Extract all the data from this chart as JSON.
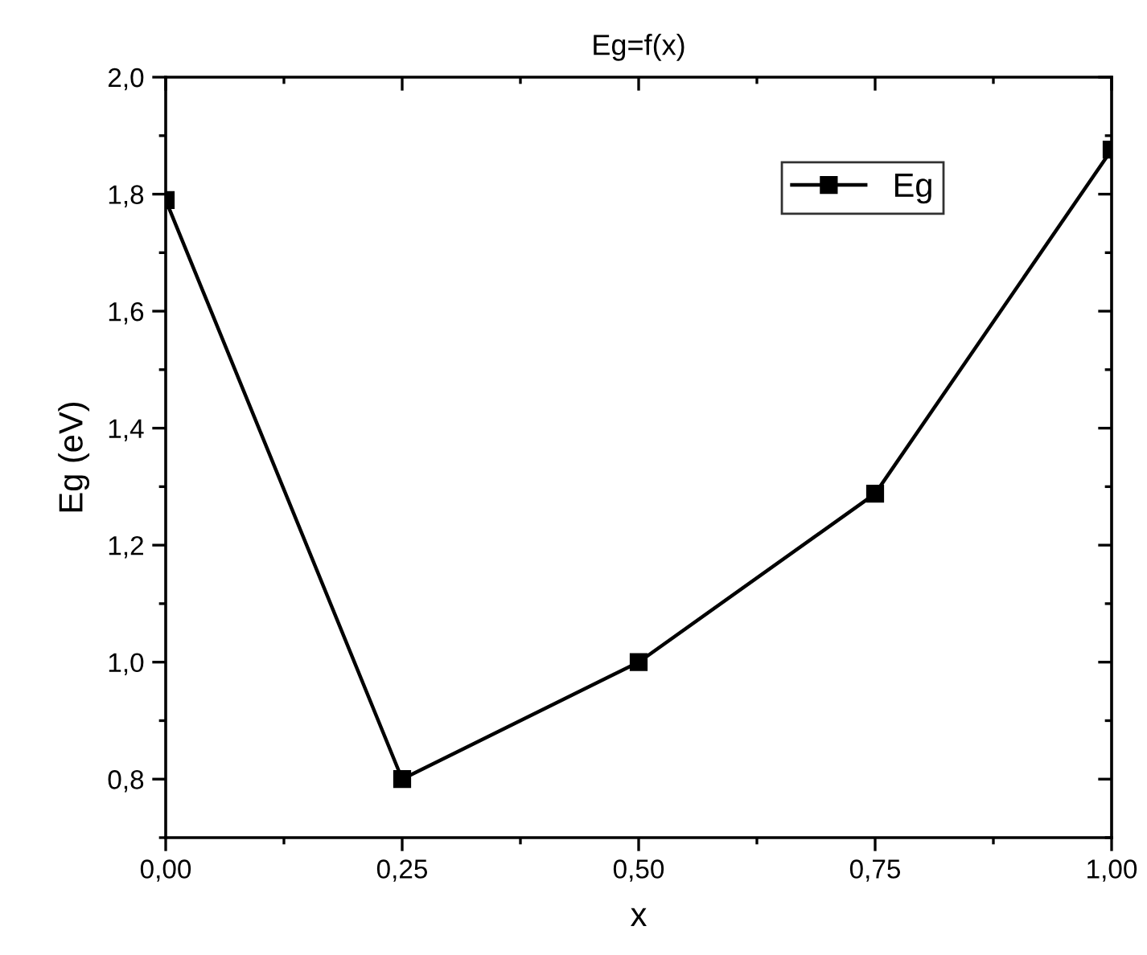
{
  "chart_data": {
    "type": "line",
    "title": "Eg=f(x)",
    "xlabel": "x",
    "ylabel": "Eg (eV)",
    "x": [
      0,
      0.25,
      0.5,
      0.75,
      1.0
    ],
    "series": [
      {
        "name": "Eg",
        "color": "#000000",
        "values": [
          1.79,
          0.8,
          1.0,
          1.288,
          1.876
        ]
      }
    ],
    "xlim": [
      0,
      1.0
    ],
    "ylim": [
      0.7,
      2.0
    ],
    "xticks": [
      {
        "value": 0,
        "label": "0,00"
      },
      {
        "value": 0.25,
        "label": "0,25"
      },
      {
        "value": 0.5,
        "label": "0,50"
      },
      {
        "value": 0.75,
        "label": "0,75"
      },
      {
        "value": 1.0,
        "label": "1,00"
      }
    ],
    "yticks": [
      {
        "value": 0.8,
        "label": "0,8"
      },
      {
        "value": 1.0,
        "label": "1,0"
      },
      {
        "value": 1.2,
        "label": "1,2"
      },
      {
        "value": 1.4,
        "label": "1,4"
      },
      {
        "value": 1.6,
        "label": "1,6"
      },
      {
        "value": 1.8,
        "label": "1,8"
      },
      {
        "value": 2.0,
        "label": "2,0"
      }
    ],
    "marker": "square",
    "line_style": "solid",
    "legend": "top right",
    "grid": false
  }
}
